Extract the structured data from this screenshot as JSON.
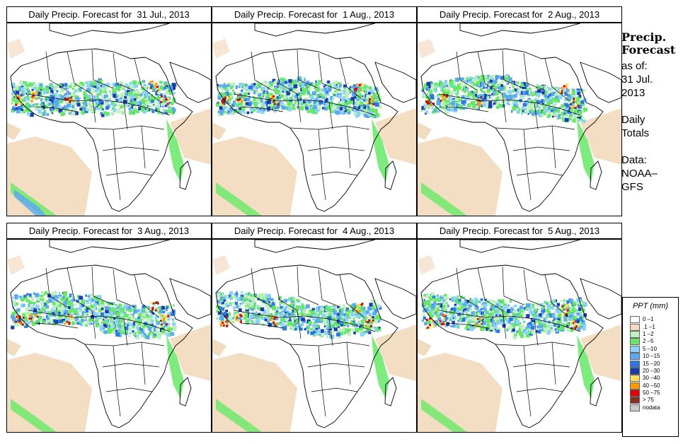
{
  "panels": [
    {
      "title": "Daily Precip. Forecast for  31 Jul., 2013"
    },
    {
      "title": "Daily Precip. Forecast for  1 Aug., 2013"
    },
    {
      "title": "Daily Precip. Forecast for  2 Aug., 2013"
    },
    {
      "title": "Daily Precip. Forecast for  3 Aug., 2013"
    },
    {
      "title": "Daily Precip. Forecast for  4 Aug., 2013"
    },
    {
      "title": "Daily Precip. Forecast for  5 Aug., 2013"
    }
  ],
  "sidebar": {
    "title_line1": "Precip.",
    "title_line2": "Forecast",
    "asof_line1": "as of:",
    "asof_line2": "31 Jul.",
    "asof_line3": "2013",
    "totals_line1": "Daily",
    "totals_line2": "Totals",
    "data_line1": "Data:",
    "data_line2": "NOAA–",
    "data_line3": "GFS"
  },
  "legend": {
    "title": "PPT (mm)",
    "items": [
      {
        "label": "0 –1",
        "color": "#ffffff"
      },
      {
        "label": ".1 –1",
        "color": "#f2dcc0"
      },
      {
        "label": "1 –2",
        "color": "#bff0bf"
      },
      {
        "label": "2 –5",
        "color": "#66e866"
      },
      {
        "label": "5 –10",
        "color": "#8cd2ff"
      },
      {
        "label": "10 –15",
        "color": "#5aa8f0"
      },
      {
        "label": "15 –20",
        "color": "#2a78e0"
      },
      {
        "label": "20 –30",
        "color": "#1a3caa"
      },
      {
        "label": "30 –40",
        "color": "#ffe060"
      },
      {
        "label": "40 –50",
        "color": "#ff9a00"
      },
      {
        "label": "50 –75",
        "color": "#e00000"
      },
      {
        "label": "> 75",
        "color": "#8a3020"
      },
      {
        "label": "nodata",
        "color": "#c8c8c8"
      }
    ]
  }
}
